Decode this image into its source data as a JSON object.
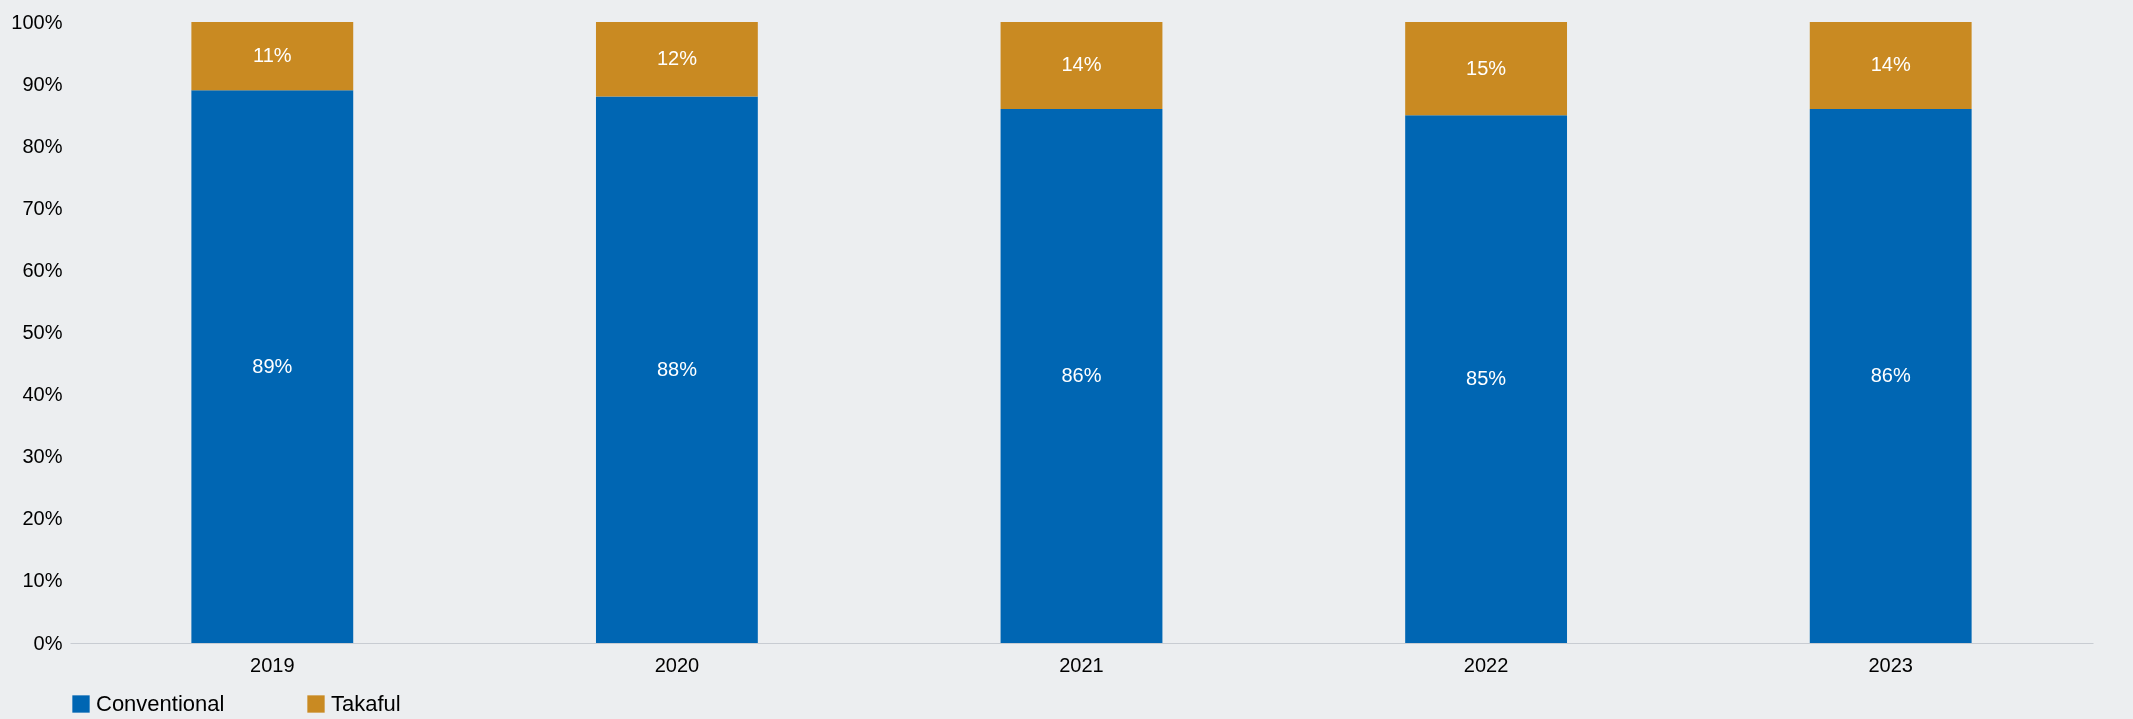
{
  "chart_data": {
    "type": "bar",
    "stacked": true,
    "categories": [
      "2019",
      "2020",
      "2021",
      "2022",
      "2023"
    ],
    "series": [
      {
        "name": "Conventional",
        "color": "#0066b3",
        "values": [
          89,
          88,
          86,
          85,
          86
        ],
        "value_labels": [
          "89%",
          "88%",
          "86%",
          "85%",
          "86%"
        ]
      },
      {
        "name": "Takaful",
        "color": "#c98a22",
        "values": [
          11,
          12,
          14,
          15,
          14
        ],
        "value_labels": [
          "11%",
          "12%",
          "14%",
          "15%",
          "14%"
        ]
      }
    ],
    "ylim": [
      0,
      100
    ],
    "yticks": [
      {
        "value": 0,
        "label": "0%"
      },
      {
        "value": 10,
        "label": "10%"
      },
      {
        "value": 20,
        "label": "20%"
      },
      {
        "value": 30,
        "label": "30%"
      },
      {
        "value": 40,
        "label": "40%"
      },
      {
        "value": 50,
        "label": "50%"
      },
      {
        "value": 60,
        "label": "60%"
      },
      {
        "value": 70,
        "label": "70%"
      },
      {
        "value": 80,
        "label": "80%"
      },
      {
        "value": 90,
        "label": "90%"
      },
      {
        "value": 100,
        "label": "100%"
      }
    ],
    "grid": false,
    "legend": "bottom"
  }
}
